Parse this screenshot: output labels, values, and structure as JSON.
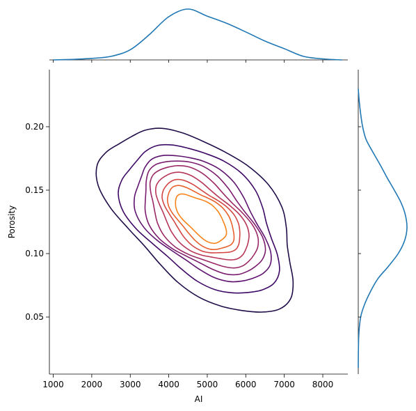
{
  "chart_data": {
    "type": "kde-jointplot",
    "xlabel": "AI",
    "ylabel": "Porosity",
    "xlim": [
      900,
      8650
    ],
    "ylim": [
      0.005,
      0.245
    ],
    "xticks": [
      1000,
      2000,
      3000,
      4000,
      5000,
      6000,
      7000,
      8000
    ],
    "yticks": [
      0.05,
      0.1,
      0.15,
      0.2
    ],
    "xtick_labels": [
      "1000",
      "2000",
      "3000",
      "4000",
      "5000",
      "6000",
      "7000",
      "8000"
    ],
    "ytick_labels": [
      "0.05",
      "0.10",
      "0.15",
      "0.20"
    ],
    "grid": false,
    "colormap": "inferno",
    "contour_levels": 9,
    "contour_colors": [
      "#1f0c48",
      "#3d0965",
      "#5d126e",
      "#7b1b6d",
      "#9a2865",
      "#b73557",
      "#d24644",
      "#e8602b",
      "#f7831a"
    ],
    "innermost_color": "#fbbb2e",
    "kde_center": {
      "x": 4850,
      "y": 0.128
    },
    "contour_extents": [
      {
        "x": [
          2650,
          7150
        ],
        "y": [
          0.062,
          0.209
        ]
      },
      {
        "x": [
          3000,
          6800
        ],
        "y": [
          0.069,
          0.186
        ]
      },
      {
        "x": [
          3300,
          6450
        ],
        "y": [
          0.077,
          0.178
        ]
      },
      {
        "x": [
          3450,
          6250
        ],
        "y": [
          0.081,
          0.172
        ]
      },
      {
        "x": [
          3600,
          6050
        ],
        "y": [
          0.085,
          0.167
        ]
      },
      {
        "x": [
          3800,
          5850
        ],
        "y": [
          0.089,
          0.16
        ]
      },
      {
        "x": [
          3950,
          5650
        ],
        "y": [
          0.094,
          0.154
        ]
      },
      {
        "x": [
          4050,
          5450
        ],
        "y": [
          0.1,
          0.152
        ]
      },
      {
        "x": [
          4200,
          5250
        ],
        "y": [
          0.11,
          0.15
        ]
      }
    ],
    "marginal_x": {
      "color": "#1f77b4",
      "x": [
        1000,
        1500,
        2000,
        2500,
        3000,
        3500,
        4000,
        4500,
        5000,
        5500,
        6000,
        6500,
        7000,
        7500,
        8000,
        8500
      ],
      "density": [
        0.0,
        0.01,
        0.03,
        0.07,
        0.2,
        0.5,
        0.85,
        1.0,
        0.86,
        0.72,
        0.55,
        0.37,
        0.22,
        0.07,
        0.02,
        0.0
      ]
    },
    "marginal_y": {
      "color": "#1f77b4",
      "y": [
        0.01,
        0.035,
        0.05,
        0.06,
        0.07,
        0.08,
        0.09,
        0.1,
        0.11,
        0.12,
        0.13,
        0.14,
        0.15,
        0.16,
        0.17,
        0.18,
        0.19,
        0.2,
        0.21,
        0.22,
        0.23
      ],
      "density": [
        0.0,
        0.01,
        0.05,
        0.13,
        0.25,
        0.4,
        0.62,
        0.82,
        0.95,
        1.0,
        0.97,
        0.88,
        0.74,
        0.59,
        0.45,
        0.3,
        0.16,
        0.09,
        0.05,
        0.02,
        0.0
      ]
    }
  }
}
